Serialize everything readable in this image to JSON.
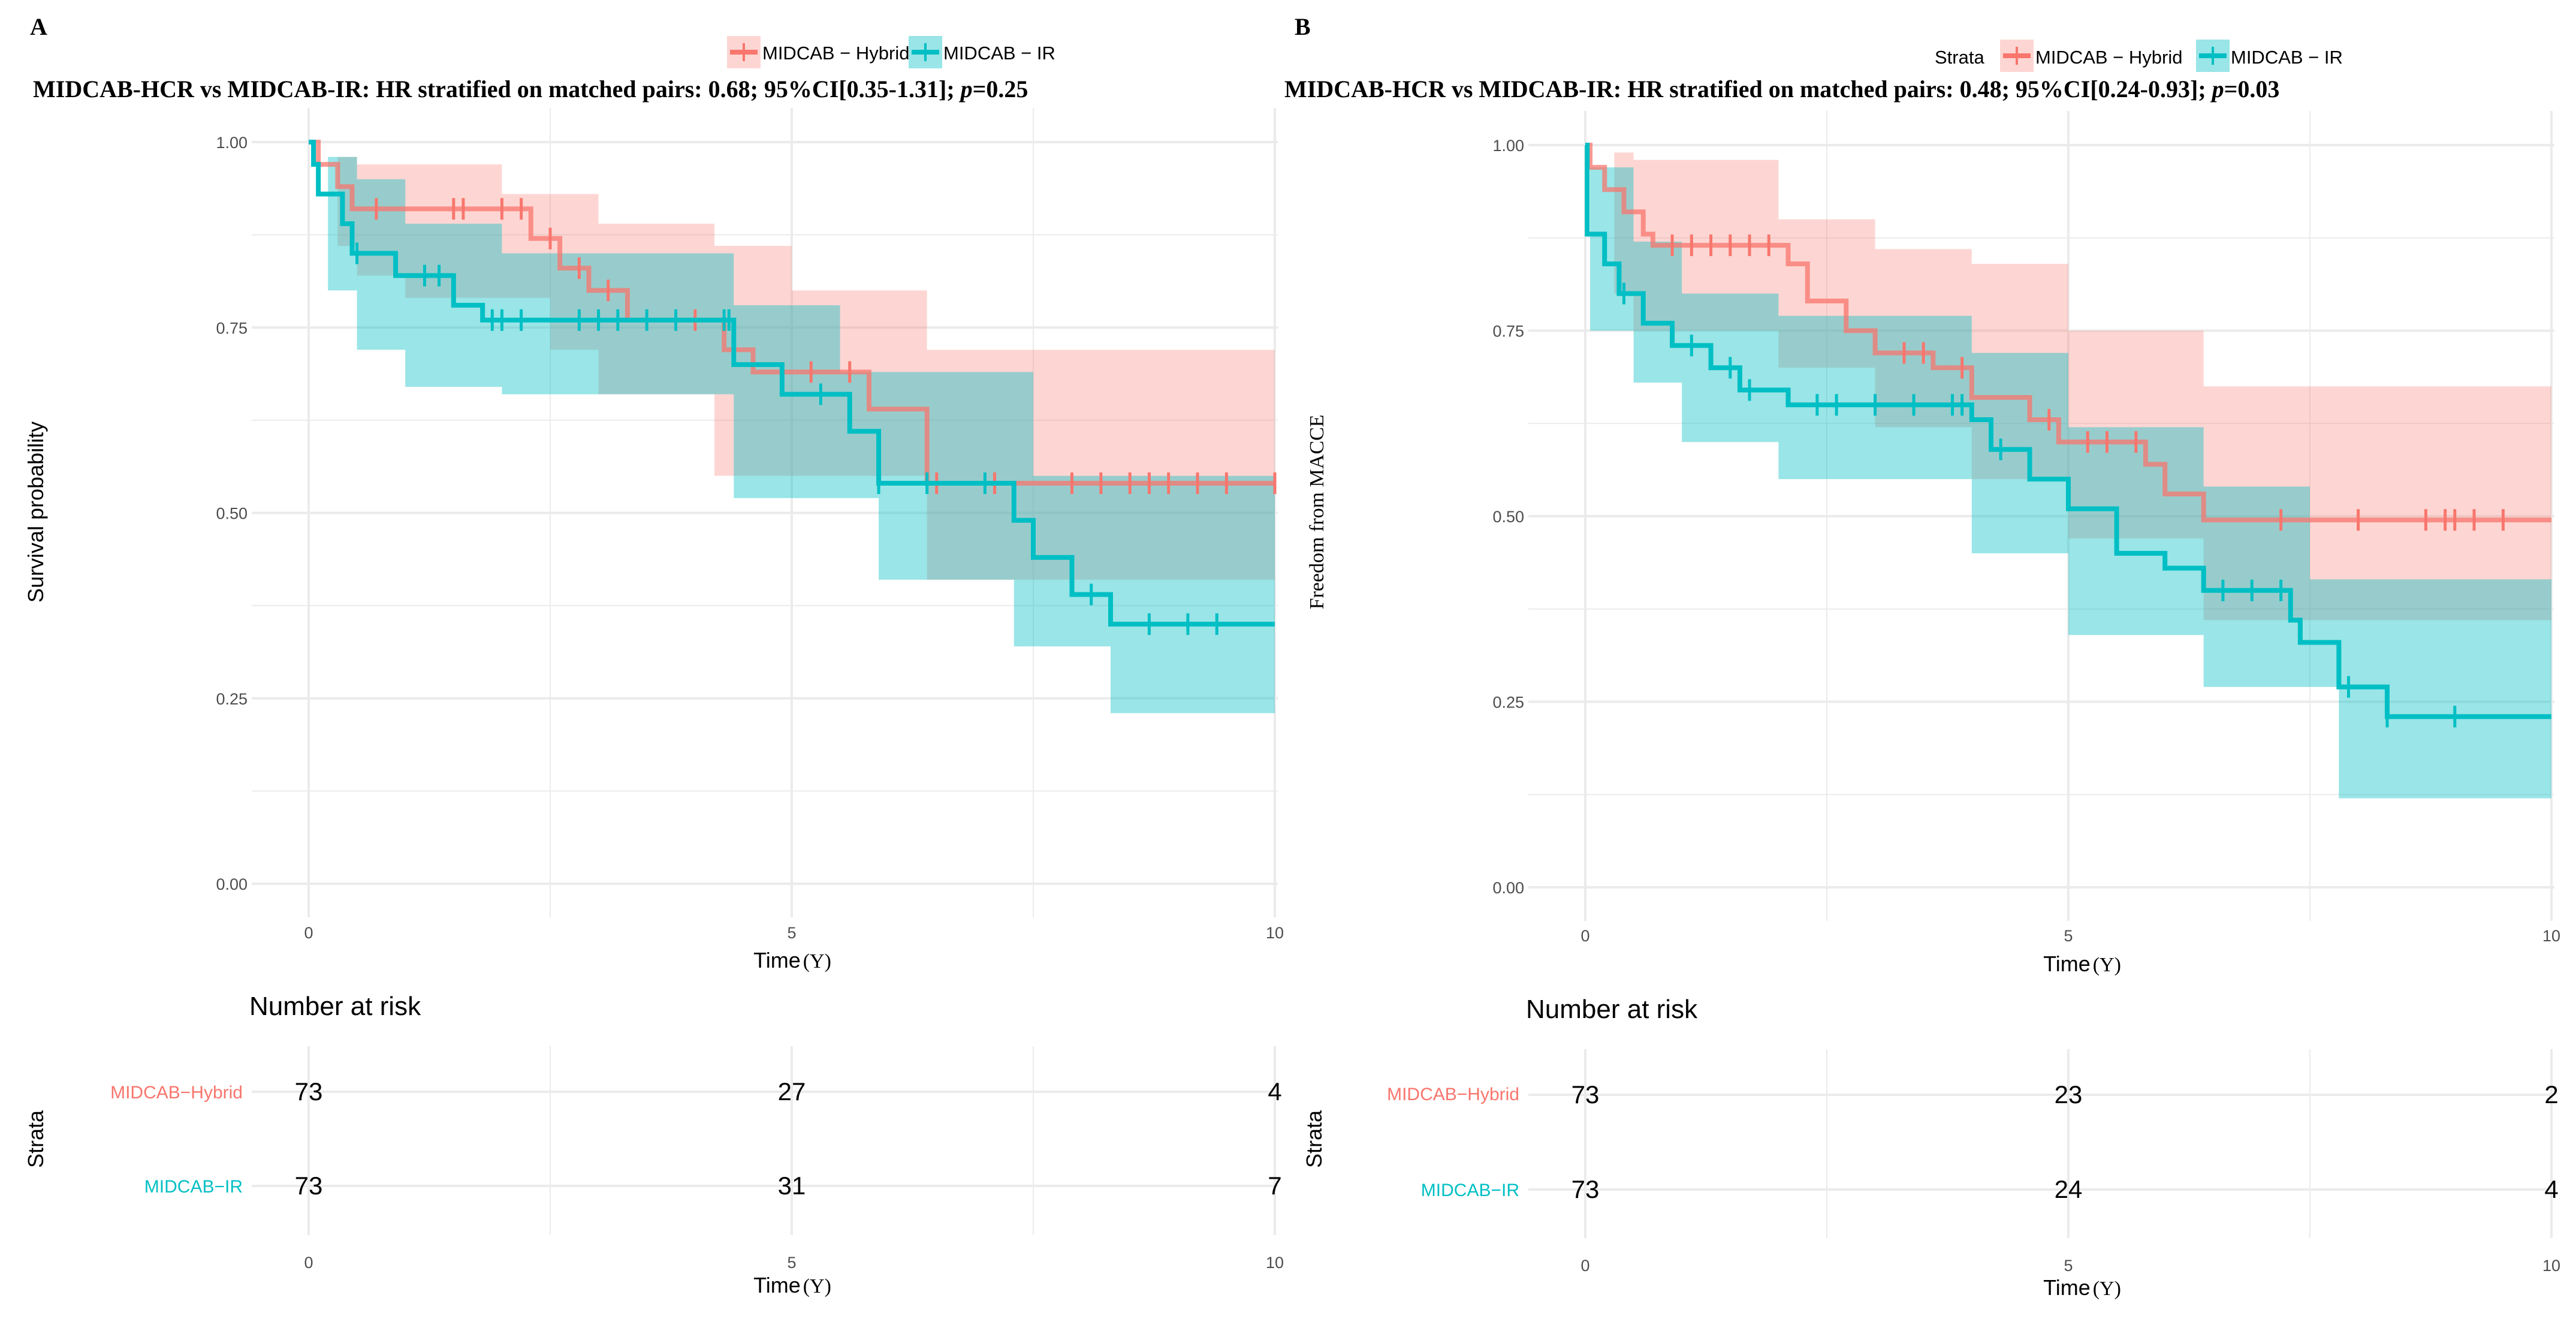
{
  "colors": {
    "hybrid": "#F8766D",
    "ir": "#00BFC4",
    "hybrid_fill": "#F8766D",
    "ir_fill": "#00BFC4",
    "grid": "#EBEBEB"
  },
  "chart_data": [
    {
      "type": "line",
      "panel_label": "A",
      "title_main": "MIDCAB-HCR vs MIDCAB-IR: HR stratified on matched pairs: 0.68; 95%CI[0.35-1.31]; ",
      "title_p": "p",
      "title_pval": "=0.25",
      "legend_title": "",
      "legend": [
        "MIDCAB − Hybrid",
        "MIDCAB − IR"
      ],
      "legend_placement": "top",
      "ylabel": "Survival probability",
      "xlabel": "Time",
      "xlabel_unit": "(Y)",
      "xlim": [
        0,
        10
      ],
      "ylim": [
        0,
        1
      ],
      "xticks": [
        "0",
        "5",
        "10"
      ],
      "yticks": [
        "0.00",
        "0.25",
        "0.50",
        "0.75",
        "1.00"
      ],
      "series": [
        {
          "name": "MIDCAB − Hybrid",
          "steps": [
            [
              0,
              1
            ],
            [
              0.1,
              0.97
            ],
            [
              0.3,
              0.94
            ],
            [
              0.45,
              0.91
            ],
            [
              2.3,
              0.87
            ],
            [
              2.6,
              0.83
            ],
            [
              2.9,
              0.8
            ],
            [
              3.3,
              0.76
            ],
            [
              4.3,
              0.72
            ],
            [
              4.6,
              0.69
            ],
            [
              5.8,
              0.64
            ],
            [
              6.4,
              0.54
            ]
          ],
          "ci": [
            [
              0,
              1,
              1
            ],
            [
              0.3,
              0.86,
              0.98
            ],
            [
              0.5,
              0.82,
              0.97
            ],
            [
              1.0,
              0.79,
              0.97
            ],
            [
              2.0,
              0.79,
              0.93
            ],
            [
              2.5,
              0.72,
              0.93
            ],
            [
              3.0,
              0.66,
              0.89
            ],
            [
              4.2,
              0.55,
              0.86
            ],
            [
              5.0,
              0.55,
              0.8
            ],
            [
              6.4,
              0.41,
              0.72
            ]
          ],
          "censored": [
            0.7,
            1.5,
            1.6,
            2.0,
            2.2,
            2.5,
            2.8,
            3.1,
            4.0,
            5.2,
            5.6,
            6.5,
            7.1,
            7.9,
            8.2,
            8.5,
            8.7,
            8.9,
            9.2,
            9.5,
            10
          ]
        },
        {
          "name": "MIDCAB − IR",
          "steps": [
            [
              0,
              1
            ],
            [
              0.05,
              0.97
            ],
            [
              0.1,
              0.93
            ],
            [
              0.35,
              0.89
            ],
            [
              0.45,
              0.85
            ],
            [
              0.9,
              0.82
            ],
            [
              1.5,
              0.78
            ],
            [
              1.8,
              0.76
            ],
            [
              4.4,
              0.7
            ],
            [
              4.9,
              0.66
            ],
            [
              5.6,
              0.61
            ],
            [
              5.9,
              0.54
            ],
            [
              7.3,
              0.49
            ],
            [
              7.5,
              0.44
            ],
            [
              7.9,
              0.39
            ],
            [
              8.3,
              0.35
            ]
          ],
          "ci": [
            [
              0,
              1,
              1
            ],
            [
              0.2,
              0.8,
              0.98
            ],
            [
              0.5,
              0.72,
              0.95
            ],
            [
              1.0,
              0.67,
              0.89
            ],
            [
              2.0,
              0.66,
              0.85
            ],
            [
              4.4,
              0.52,
              0.78
            ],
            [
              5.5,
              0.52,
              0.69
            ],
            [
              5.9,
              0.41,
              0.69
            ],
            [
              7.3,
              0.32,
              0.69
            ],
            [
              7.5,
              0.32,
              0.55
            ],
            [
              8.3,
              0.23,
              0.55
            ]
          ],
          "censored": [
            0.5,
            1.2,
            1.35,
            1.9,
            2.0,
            2.2,
            2.8,
            3.0,
            3.2,
            3.5,
            3.8,
            4.3,
            4.35,
            5.3,
            5.9,
            6.4,
            7.0,
            8.1,
            8.7,
            9.1,
            9.4
          ]
        }
      ],
      "risk_table": {
        "title": "Number at risk",
        "ylabel": "Strata",
        "rows": [
          {
            "label": "MIDCAB−Hybrid",
            "values": [
              "73",
              "27",
              "4"
            ]
          },
          {
            "label": "MIDCAB−IR",
            "values": [
              "73",
              "31",
              "7"
            ]
          }
        ],
        "xticks": [
          "0",
          "5",
          "10"
        ],
        "xlabel": "Time",
        "xlabel_unit": "(Y)"
      }
    },
    {
      "type": "line",
      "panel_label": "B",
      "title_main": "MIDCAB-HCR vs MIDCAB-IR: HR stratified on matched pairs: 0.48; 95%CI[0.24-0.93]; ",
      "title_p": "p",
      "title_pval": "=0.03",
      "legend_title": "Strata",
      "legend": [
        "MIDCAB − Hybrid",
        "MIDCAB − IR"
      ],
      "legend_placement": "top",
      "ylabel": "Freedom from MACCE",
      "xlabel": "Time",
      "xlabel_unit": "(Y)",
      "xlim": [
        0,
        10
      ],
      "ylim": [
        0,
        1
      ],
      "xticks": [
        "0",
        "5",
        "10"
      ],
      "yticks": [
        "0.00",
        "0.25",
        "0.50",
        "0.75",
        "1.00"
      ],
      "series": [
        {
          "name": "MIDCAB − Hybrid",
          "steps": [
            [
              0,
              1
            ],
            [
              0.05,
              0.97
            ],
            [
              0.2,
              0.94
            ],
            [
              0.4,
              0.91
            ],
            [
              0.6,
              0.88
            ],
            [
              0.7,
              0.865
            ],
            [
              2.1,
              0.84
            ],
            [
              2.3,
              0.79
            ],
            [
              2.7,
              0.75
            ],
            [
              3.0,
              0.72
            ],
            [
              3.6,
              0.7
            ],
            [
              4.0,
              0.66
            ],
            [
              4.6,
              0.63
            ],
            [
              4.9,
              0.6
            ],
            [
              5.8,
              0.57
            ],
            [
              6.0,
              0.53
            ],
            [
              6.4,
              0.495
            ]
          ],
          "ci": [
            [
              0,
              1,
              1
            ],
            [
              0.3,
              0.8,
              0.99
            ],
            [
              0.5,
              0.75,
              0.98
            ],
            [
              2.0,
              0.7,
              0.9
            ],
            [
              3.0,
              0.62,
              0.86
            ],
            [
              4.0,
              0.55,
              0.84
            ],
            [
              5.0,
              0.47,
              0.75
            ],
            [
              6.4,
              0.36,
              0.675
            ]
          ],
          "censored": [
            0.9,
            1.1,
            1.3,
            1.5,
            1.7,
            1.9,
            3.3,
            3.5,
            3.9,
            4.8,
            5.2,
            5.4,
            5.7,
            7.2,
            8.0,
            8.7,
            8.9,
            9.0,
            9.2,
            9.5
          ]
        },
        {
          "name": "MIDCAB − IR",
          "steps": [
            [
              0,
              1
            ],
            [
              0.02,
              0.88
            ],
            [
              0.2,
              0.84
            ],
            [
              0.35,
              0.8
            ],
            [
              0.6,
              0.76
            ],
            [
              0.9,
              0.73
            ],
            [
              1.3,
              0.7
            ],
            [
              1.6,
              0.67
            ],
            [
              2.1,
              0.65
            ],
            [
              4.0,
              0.63
            ],
            [
              4.2,
              0.59
            ],
            [
              4.6,
              0.55
            ],
            [
              5.0,
              0.51
            ],
            [
              5.5,
              0.45
            ],
            [
              6.0,
              0.43
            ],
            [
              6.4,
              0.4
            ],
            [
              7.3,
              0.36
            ],
            [
              7.4,
              0.33
            ],
            [
              7.8,
              0.27
            ],
            [
              8.3,
              0.23
            ]
          ],
          "ci": [
            [
              0,
              1,
              1
            ],
            [
              0.05,
              0.75,
              0.97
            ],
            [
              0.5,
              0.68,
              0.87
            ],
            [
              1.0,
              0.6,
              0.8
            ],
            [
              2.0,
              0.55,
              0.77
            ],
            [
              4.0,
              0.45,
              0.72
            ],
            [
              5.0,
              0.34,
              0.62
            ],
            [
              6.4,
              0.27,
              0.54
            ],
            [
              7.5,
              0.27,
              0.415
            ],
            [
              7.8,
              0.12,
              0.415
            ]
          ],
          "censored": [
            0.4,
            1.1,
            1.5,
            1.7,
            2.4,
            2.6,
            3.0,
            3.4,
            3.8,
            3.9,
            4.3,
            6.6,
            6.9,
            7.2,
            7.9,
            8.3,
            9.0
          ]
        }
      ],
      "risk_table": {
        "title": "Number at risk",
        "ylabel": "Strata",
        "rows": [
          {
            "label": "MIDCAB−Hybrid",
            "values": [
              "73",
              "23",
              "2"
            ]
          },
          {
            "label": "MIDCAB−IR",
            "values": [
              "73",
              "24",
              "4"
            ]
          }
        ],
        "xticks": [
          "0",
          "5",
          "10"
        ],
        "xlabel": "Time",
        "xlabel_unit": "(Y)"
      }
    }
  ]
}
